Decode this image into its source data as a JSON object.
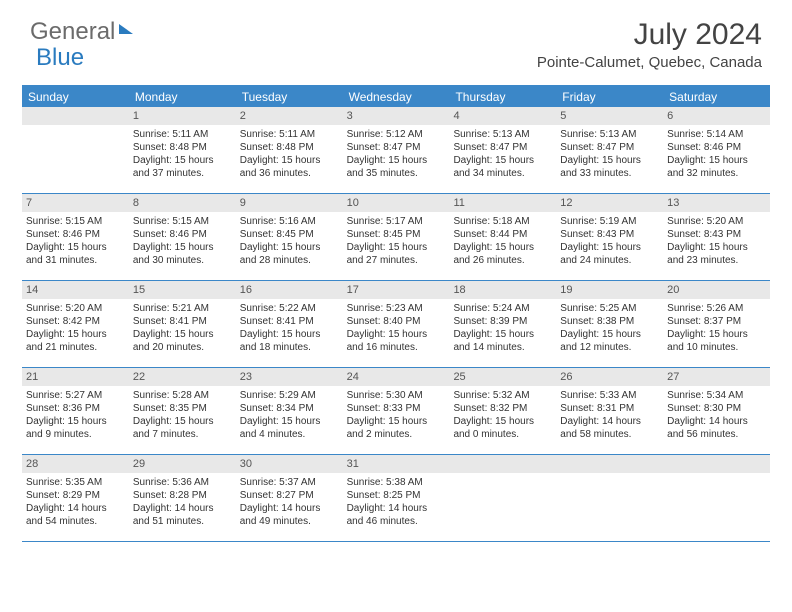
{
  "logo": {
    "word1": "General",
    "word2": "Blue"
  },
  "title": "July 2024",
  "location": "Pointe-Calumet, Quebec, Canada",
  "dow": [
    "Sunday",
    "Monday",
    "Tuesday",
    "Wednesday",
    "Thursday",
    "Friday",
    "Saturday"
  ],
  "colors": {
    "header_blue": "#3b87c8",
    "daynum_bg": "#e8e8e8",
    "text": "#333333",
    "logo_gray": "#6b6b6b",
    "logo_blue": "#2a7bbf"
  },
  "weeks": [
    [
      {
        "num": "",
        "sr": "",
        "ss": "",
        "dl": ""
      },
      {
        "num": "1",
        "sr": "Sunrise: 5:11 AM",
        "ss": "Sunset: 8:48 PM",
        "dl": "Daylight: 15 hours and 37 minutes."
      },
      {
        "num": "2",
        "sr": "Sunrise: 5:11 AM",
        "ss": "Sunset: 8:48 PM",
        "dl": "Daylight: 15 hours and 36 minutes."
      },
      {
        "num": "3",
        "sr": "Sunrise: 5:12 AM",
        "ss": "Sunset: 8:47 PM",
        "dl": "Daylight: 15 hours and 35 minutes."
      },
      {
        "num": "4",
        "sr": "Sunrise: 5:13 AM",
        "ss": "Sunset: 8:47 PM",
        "dl": "Daylight: 15 hours and 34 minutes."
      },
      {
        "num": "5",
        "sr": "Sunrise: 5:13 AM",
        "ss": "Sunset: 8:47 PM",
        "dl": "Daylight: 15 hours and 33 minutes."
      },
      {
        "num": "6",
        "sr": "Sunrise: 5:14 AM",
        "ss": "Sunset: 8:46 PM",
        "dl": "Daylight: 15 hours and 32 minutes."
      }
    ],
    [
      {
        "num": "7",
        "sr": "Sunrise: 5:15 AM",
        "ss": "Sunset: 8:46 PM",
        "dl": "Daylight: 15 hours and 31 minutes."
      },
      {
        "num": "8",
        "sr": "Sunrise: 5:15 AM",
        "ss": "Sunset: 8:46 PM",
        "dl": "Daylight: 15 hours and 30 minutes."
      },
      {
        "num": "9",
        "sr": "Sunrise: 5:16 AM",
        "ss": "Sunset: 8:45 PM",
        "dl": "Daylight: 15 hours and 28 minutes."
      },
      {
        "num": "10",
        "sr": "Sunrise: 5:17 AM",
        "ss": "Sunset: 8:45 PM",
        "dl": "Daylight: 15 hours and 27 minutes."
      },
      {
        "num": "11",
        "sr": "Sunrise: 5:18 AM",
        "ss": "Sunset: 8:44 PM",
        "dl": "Daylight: 15 hours and 26 minutes."
      },
      {
        "num": "12",
        "sr": "Sunrise: 5:19 AM",
        "ss": "Sunset: 8:43 PM",
        "dl": "Daylight: 15 hours and 24 minutes."
      },
      {
        "num": "13",
        "sr": "Sunrise: 5:20 AM",
        "ss": "Sunset: 8:43 PM",
        "dl": "Daylight: 15 hours and 23 minutes."
      }
    ],
    [
      {
        "num": "14",
        "sr": "Sunrise: 5:20 AM",
        "ss": "Sunset: 8:42 PM",
        "dl": "Daylight: 15 hours and 21 minutes."
      },
      {
        "num": "15",
        "sr": "Sunrise: 5:21 AM",
        "ss": "Sunset: 8:41 PM",
        "dl": "Daylight: 15 hours and 20 minutes."
      },
      {
        "num": "16",
        "sr": "Sunrise: 5:22 AM",
        "ss": "Sunset: 8:41 PM",
        "dl": "Daylight: 15 hours and 18 minutes."
      },
      {
        "num": "17",
        "sr": "Sunrise: 5:23 AM",
        "ss": "Sunset: 8:40 PM",
        "dl": "Daylight: 15 hours and 16 minutes."
      },
      {
        "num": "18",
        "sr": "Sunrise: 5:24 AM",
        "ss": "Sunset: 8:39 PM",
        "dl": "Daylight: 15 hours and 14 minutes."
      },
      {
        "num": "19",
        "sr": "Sunrise: 5:25 AM",
        "ss": "Sunset: 8:38 PM",
        "dl": "Daylight: 15 hours and 12 minutes."
      },
      {
        "num": "20",
        "sr": "Sunrise: 5:26 AM",
        "ss": "Sunset: 8:37 PM",
        "dl": "Daylight: 15 hours and 10 minutes."
      }
    ],
    [
      {
        "num": "21",
        "sr": "Sunrise: 5:27 AM",
        "ss": "Sunset: 8:36 PM",
        "dl": "Daylight: 15 hours and 9 minutes."
      },
      {
        "num": "22",
        "sr": "Sunrise: 5:28 AM",
        "ss": "Sunset: 8:35 PM",
        "dl": "Daylight: 15 hours and 7 minutes."
      },
      {
        "num": "23",
        "sr": "Sunrise: 5:29 AM",
        "ss": "Sunset: 8:34 PM",
        "dl": "Daylight: 15 hours and 4 minutes."
      },
      {
        "num": "24",
        "sr": "Sunrise: 5:30 AM",
        "ss": "Sunset: 8:33 PM",
        "dl": "Daylight: 15 hours and 2 minutes."
      },
      {
        "num": "25",
        "sr": "Sunrise: 5:32 AM",
        "ss": "Sunset: 8:32 PM",
        "dl": "Daylight: 15 hours and 0 minutes."
      },
      {
        "num": "26",
        "sr": "Sunrise: 5:33 AM",
        "ss": "Sunset: 8:31 PM",
        "dl": "Daylight: 14 hours and 58 minutes."
      },
      {
        "num": "27",
        "sr": "Sunrise: 5:34 AM",
        "ss": "Sunset: 8:30 PM",
        "dl": "Daylight: 14 hours and 56 minutes."
      }
    ],
    [
      {
        "num": "28",
        "sr": "Sunrise: 5:35 AM",
        "ss": "Sunset: 8:29 PM",
        "dl": "Daylight: 14 hours and 54 minutes."
      },
      {
        "num": "29",
        "sr": "Sunrise: 5:36 AM",
        "ss": "Sunset: 8:28 PM",
        "dl": "Daylight: 14 hours and 51 minutes."
      },
      {
        "num": "30",
        "sr": "Sunrise: 5:37 AM",
        "ss": "Sunset: 8:27 PM",
        "dl": "Daylight: 14 hours and 49 minutes."
      },
      {
        "num": "31",
        "sr": "Sunrise: 5:38 AM",
        "ss": "Sunset: 8:25 PM",
        "dl": "Daylight: 14 hours and 46 minutes."
      },
      {
        "num": "",
        "sr": "",
        "ss": "",
        "dl": ""
      },
      {
        "num": "",
        "sr": "",
        "ss": "",
        "dl": ""
      },
      {
        "num": "",
        "sr": "",
        "ss": "",
        "dl": ""
      }
    ]
  ]
}
